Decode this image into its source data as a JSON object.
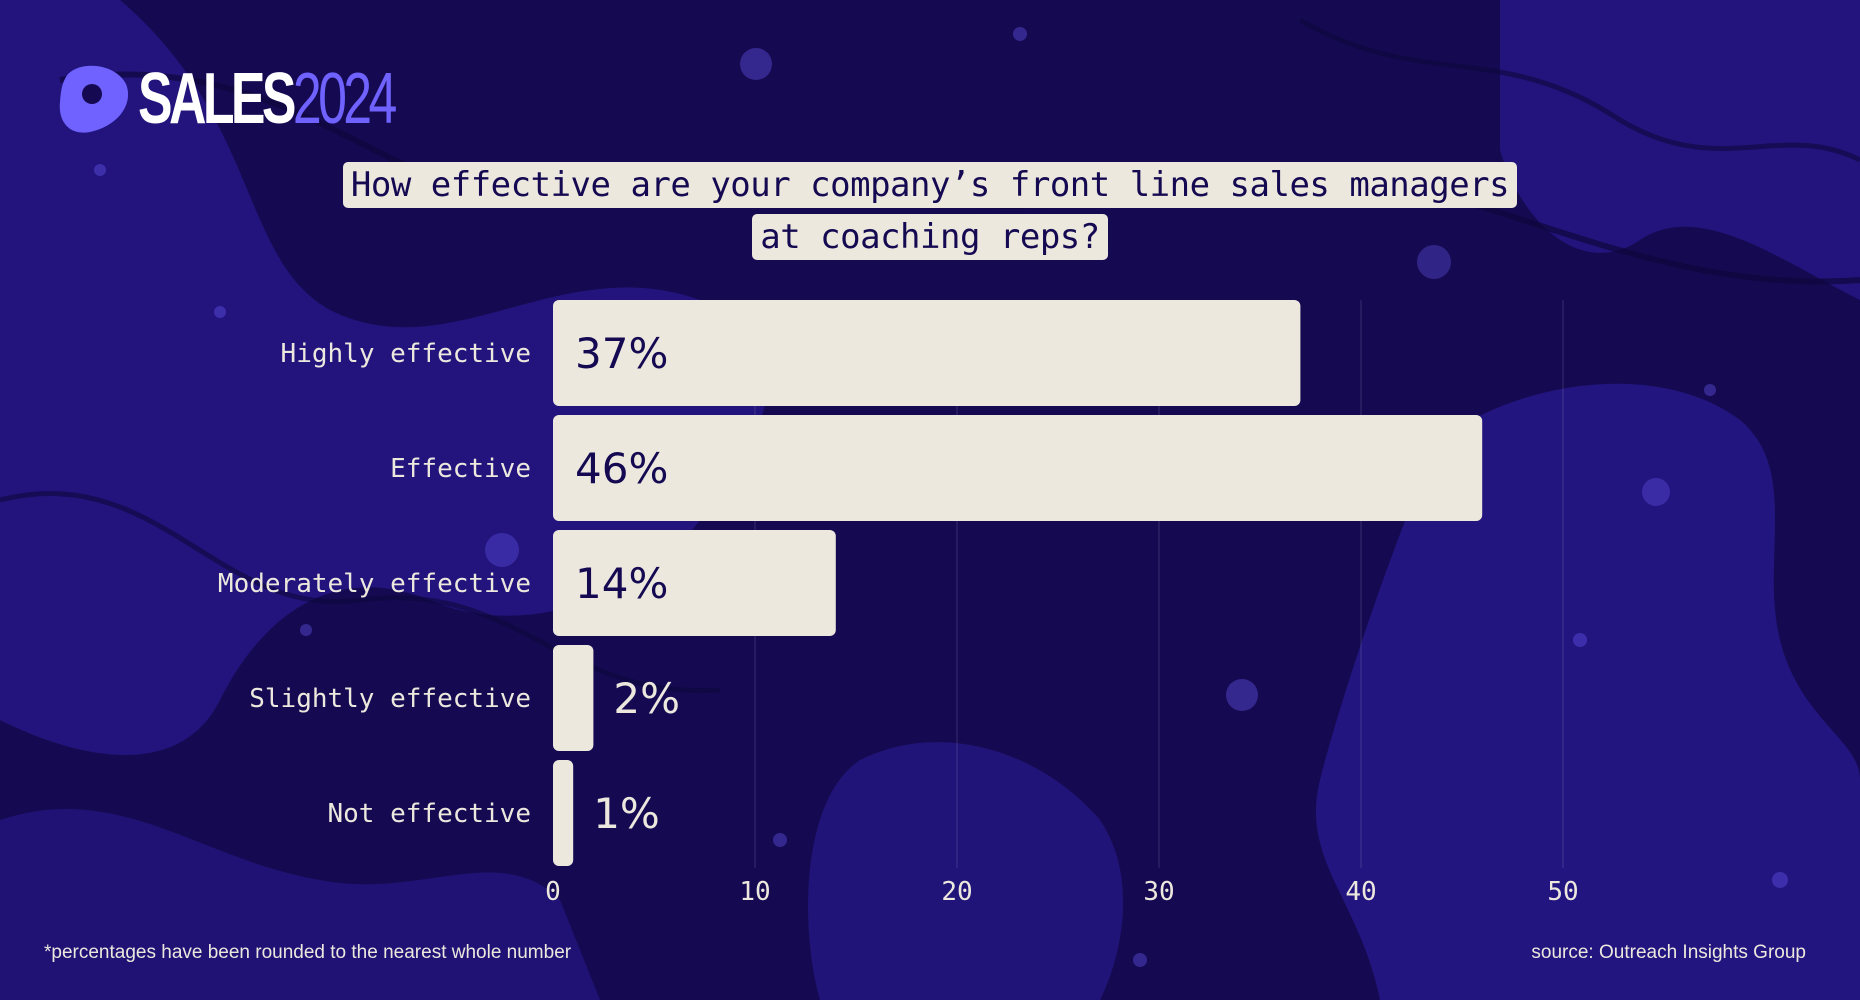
{
  "brand": {
    "name": "SALES",
    "year": "2024"
  },
  "colors": {
    "background": "#150a52",
    "bar": "#ece8de",
    "accent": "#6f62ff",
    "blob": "#2d1d9e"
  },
  "chart_data": {
    "type": "bar",
    "orientation": "horizontal",
    "title_lines": [
      "How effective are your company’s front line sales managers",
      "at coaching reps?"
    ],
    "categories": [
      "Highly effective",
      "Effective",
      "Moderately effective",
      "Slightly effective",
      "Not effective"
    ],
    "values": [
      37,
      46,
      14,
      2,
      1
    ],
    "value_labels": [
      "37%",
      "46%",
      "14%",
      "2%",
      "1%"
    ],
    "xlim": [
      0,
      50
    ],
    "xticks": [
      "0",
      "10",
      "20",
      "30",
      "40",
      "50"
    ],
    "grid": true
  },
  "footnote": "*percentages have been rounded to the nearest whole number",
  "source": "source: Outreach Insights Group"
}
